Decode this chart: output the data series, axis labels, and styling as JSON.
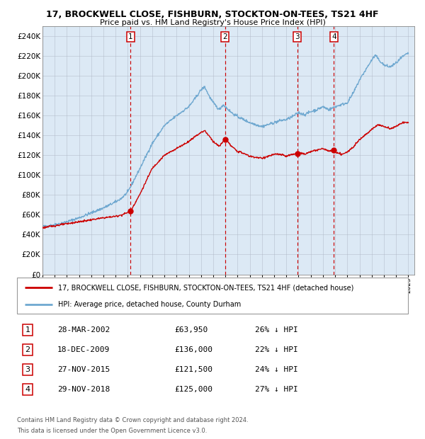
{
  "title1": "17, BROCKWELL CLOSE, FISHBURN, STOCKTON-ON-TEES, TS21 4HF",
  "title2": "Price paid vs. HM Land Registry's House Price Index (HPI)",
  "legend_line1": "17, BROCKWELL CLOSE, FISHBURN, STOCKTON-ON-TEES, TS21 4HF (detached house)",
  "legend_line2": "HPI: Average price, detached house, County Durham",
  "footer1": "Contains HM Land Registry data © Crown copyright and database right 2024.",
  "footer2": "This data is licensed under the Open Government Licence v3.0.",
  "sales": [
    {
      "num": 1,
      "date": "28-MAR-2002",
      "price": 63950,
      "pct": "26% ↓ HPI",
      "x_year": 2002.23
    },
    {
      "num": 2,
      "date": "18-DEC-2009",
      "price": 136000,
      "pct": "22% ↓ HPI",
      "x_year": 2009.96
    },
    {
      "num": 3,
      "date": "27-NOV-2015",
      "price": 121500,
      "pct": "24% ↓ HPI",
      "x_year": 2015.9
    },
    {
      "num": 4,
      "date": "29-NOV-2018",
      "price": 125000,
      "pct": "27% ↓ HPI",
      "x_year": 2018.9
    }
  ],
  "hpi_color": "#6fa8d0",
  "sale_color": "#cc0000",
  "background_color": "#dce9f5",
  "grid_color": "#b0b8c8",
  "ylim": [
    0,
    250000
  ],
  "yticks": [
    0,
    20000,
    40000,
    60000,
    80000,
    100000,
    120000,
    140000,
    160000,
    180000,
    200000,
    220000,
    240000
  ],
  "xlim_start": 1995.0,
  "xlim_end": 2025.5,
  "hpi_keypoints": [
    [
      1995.0,
      48000
    ],
    [
      1996.0,
      50000
    ],
    [
      1997.0,
      53000
    ],
    [
      1998.0,
      57000
    ],
    [
      1999.0,
      62000
    ],
    [
      2000.0,
      67000
    ],
    [
      2001.0,
      73000
    ],
    [
      2001.5,
      77000
    ],
    [
      2002.0,
      83000
    ],
    [
      2003.0,
      107000
    ],
    [
      2004.0,
      132000
    ],
    [
      2005.0,
      150000
    ],
    [
      2006.0,
      160000
    ],
    [
      2007.0,
      169000
    ],
    [
      2007.5,
      177000
    ],
    [
      2008.0,
      186000
    ],
    [
      2008.3,
      189000
    ],
    [
      2008.7,
      179000
    ],
    [
      2009.0,
      173000
    ],
    [
      2009.5,
      166000
    ],
    [
      2009.8,
      171000
    ],
    [
      2010.0,
      169000
    ],
    [
      2010.5,
      163000
    ],
    [
      2011.0,
      159000
    ],
    [
      2011.5,
      156000
    ],
    [
      2012.0,
      153000
    ],
    [
      2012.5,
      151000
    ],
    [
      2013.0,
      149000
    ],
    [
      2013.5,
      151000
    ],
    [
      2014.0,
      153000
    ],
    [
      2014.5,
      155000
    ],
    [
      2015.0,
      156000
    ],
    [
      2015.5,
      159000
    ],
    [
      2016.0,
      163000
    ],
    [
      2016.5,
      161000
    ],
    [
      2017.0,
      164000
    ],
    [
      2017.5,
      166000
    ],
    [
      2018.0,
      169000
    ],
    [
      2018.5,
      166000
    ],
    [
      2019.0,
      169000
    ],
    [
      2019.5,
      171000
    ],
    [
      2020.0,
      173000
    ],
    [
      2020.5,
      183000
    ],
    [
      2021.0,
      196000
    ],
    [
      2021.5,
      206000
    ],
    [
      2022.0,
      216000
    ],
    [
      2022.3,
      221000
    ],
    [
      2022.6,
      216000
    ],
    [
      2023.0,
      211000
    ],
    [
      2023.5,
      209000
    ],
    [
      2024.0,
      213000
    ],
    [
      2024.5,
      219000
    ],
    [
      2025.0,
      223000
    ]
  ],
  "sale_keypoints": [
    [
      1995.0,
      47000
    ],
    [
      1996.0,
      49000
    ],
    [
      1997.0,
      51000
    ],
    [
      1998.0,
      53000
    ],
    [
      1999.0,
      55000
    ],
    [
      2000.0,
      57000
    ],
    [
      2001.0,
      58500
    ],
    [
      2001.5,
      60000
    ],
    [
      2002.0,
      62500
    ],
    [
      2002.23,
      63950
    ],
    [
      2003.0,
      81000
    ],
    [
      2004.0,
      107000
    ],
    [
      2005.0,
      120000
    ],
    [
      2006.0,
      127000
    ],
    [
      2007.0,
      134000
    ],
    [
      2007.5,
      139000
    ],
    [
      2008.0,
      143000
    ],
    [
      2008.3,
      145000
    ],
    [
      2008.7,
      139000
    ],
    [
      2009.0,
      134000
    ],
    [
      2009.5,
      129000
    ],
    [
      2009.96,
      136000
    ],
    [
      2010.2,
      133500
    ],
    [
      2010.5,
      129000
    ],
    [
      2011.0,
      124000
    ],
    [
      2011.5,
      122000
    ],
    [
      2012.0,
      119000
    ],
    [
      2012.5,
      118000
    ],
    [
      2013.0,
      117000
    ],
    [
      2013.5,
      119000
    ],
    [
      2014.0,
      121000
    ],
    [
      2014.5,
      121000
    ],
    [
      2015.0,
      119000
    ],
    [
      2015.5,
      121000
    ],
    [
      2015.9,
      121500
    ],
    [
      2016.2,
      122500
    ],
    [
      2016.5,
      121000
    ],
    [
      2017.0,
      124000
    ],
    [
      2017.5,
      125000
    ],
    [
      2018.0,
      127000
    ],
    [
      2018.5,
      124000
    ],
    [
      2018.9,
      125000
    ],
    [
      2019.0,
      123000
    ],
    [
      2019.5,
      121000
    ],
    [
      2020.0,
      123000
    ],
    [
      2020.5,
      129000
    ],
    [
      2021.0,
      136000
    ],
    [
      2021.5,
      141000
    ],
    [
      2022.0,
      146000
    ],
    [
      2022.5,
      151000
    ],
    [
      2023.0,
      149000
    ],
    [
      2023.5,
      147000
    ],
    [
      2024.0,
      149000
    ],
    [
      2024.5,
      153000
    ],
    [
      2025.0,
      153000
    ]
  ]
}
